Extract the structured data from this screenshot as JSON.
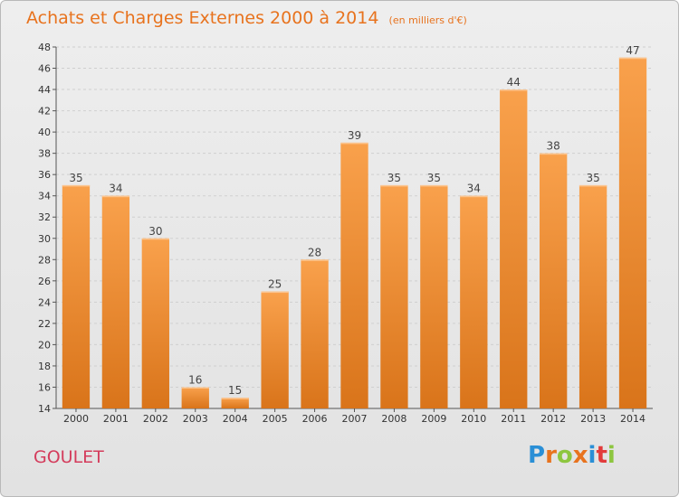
{
  "header": {
    "title": "Achats et Charges Externes 2000 à 2014",
    "subtitle": "(en milliers d'€)"
  },
  "footer": {
    "commune": "GOULET",
    "logo_text": "Proxiti"
  },
  "colors": {
    "bar_light": "#f9a14c",
    "bar_dark": "#d9741a",
    "title": "#e8731e",
    "commune": "#d43c5c",
    "grid": "#cfcfcf"
  },
  "chart_data": {
    "type": "bar",
    "title": "Achats et Charges Externes 2000 à 2014",
    "subtitle": "(en milliers d'€)",
    "categories": [
      "2000",
      "2001",
      "2002",
      "2003",
      "2004",
      "2005",
      "2006",
      "2007",
      "2008",
      "2009",
      "2010",
      "2011",
      "2012",
      "2013",
      "2014"
    ],
    "values": [
      35,
      34,
      30,
      16,
      15,
      25,
      28,
      39,
      35,
      35,
      34,
      44,
      38,
      35,
      47
    ],
    "ylim": [
      14,
      48
    ],
    "yticks": [
      14,
      16,
      18,
      20,
      22,
      24,
      26,
      28,
      30,
      32,
      34,
      36,
      38,
      40,
      42,
      44,
      46,
      48
    ],
    "grid": "horizontal dashed",
    "legend": "none"
  }
}
